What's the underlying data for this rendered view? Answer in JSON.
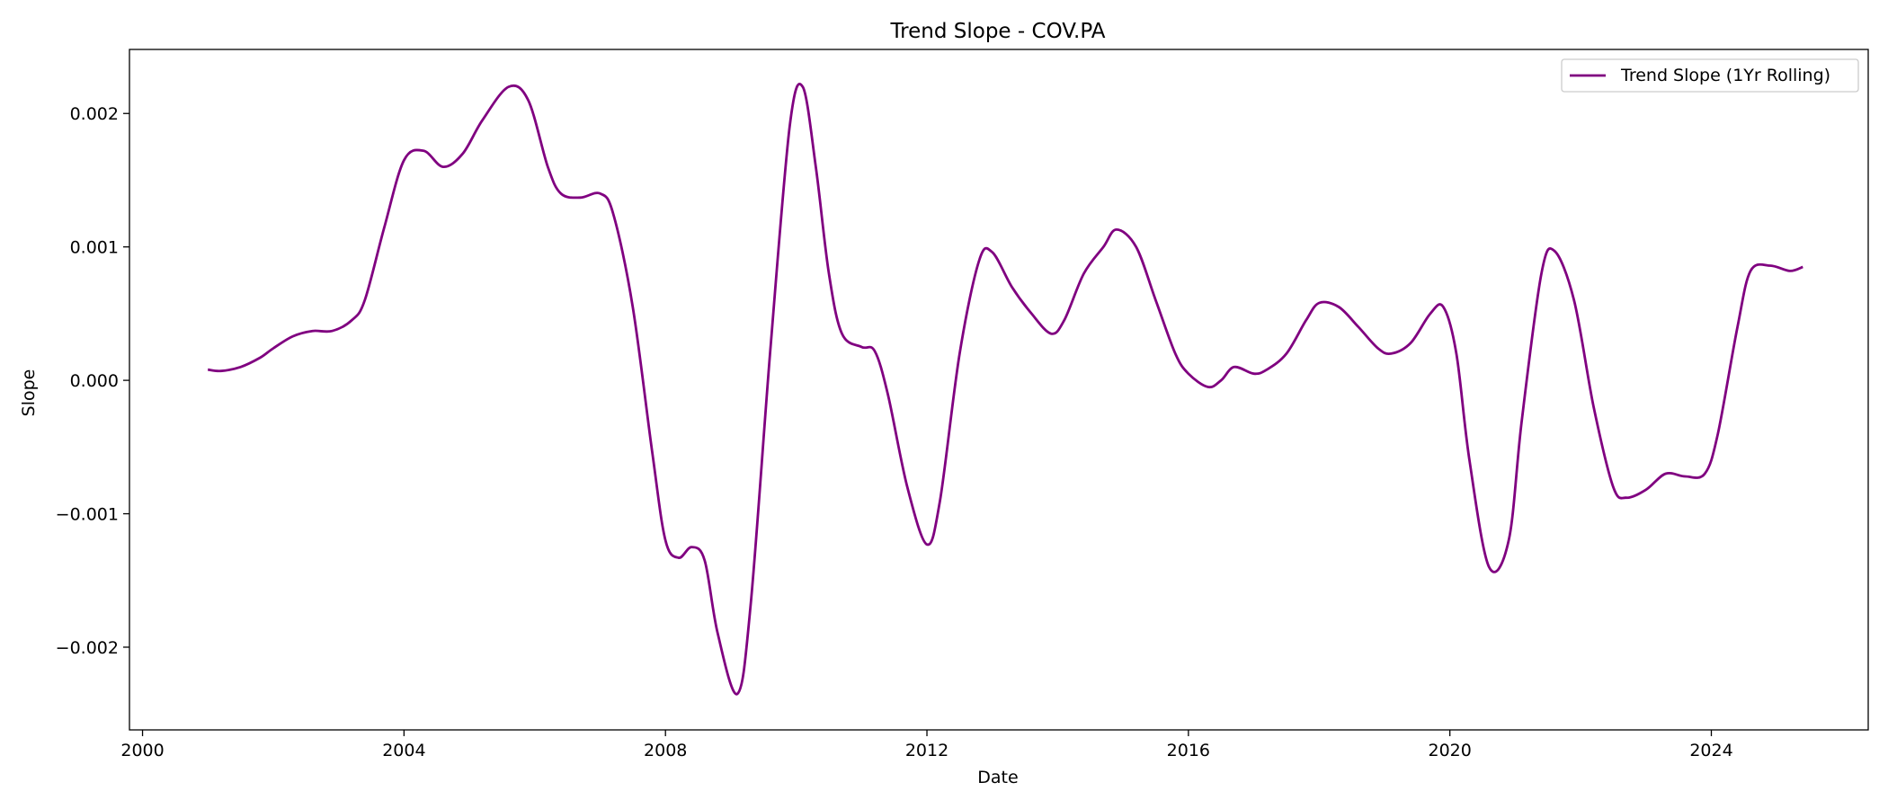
{
  "chart_data": {
    "type": "line",
    "title": "Trend Slope - COV.PA",
    "xlabel": "Date",
    "ylabel": "Slope",
    "xlim": [
      1999.8,
      2026.4
    ],
    "ylim": [
      -0.00262,
      0.00248
    ],
    "x_ticks": [
      2000,
      2004,
      2008,
      2012,
      2016,
      2020,
      2024
    ],
    "x_tick_labels": [
      "2000",
      "2004",
      "2008",
      "2012",
      "2016",
      "2020",
      "2024"
    ],
    "y_ticks": [
      -0.002,
      -0.001,
      0.0,
      0.001,
      0.002
    ],
    "y_tick_labels": [
      "−0.002",
      "−0.001",
      "0.000",
      "0.001",
      "0.002"
    ],
    "grid": false,
    "legend_position": "top-right",
    "series": [
      {
        "name": "Trend Slope (1Yr Rolling)",
        "color": "#800080",
        "x": [
          2001.0,
          2001.2,
          2001.5,
          2001.8,
          2002.0,
          2002.3,
          2002.6,
          2002.9,
          2003.2,
          2003.4,
          2003.7,
          2004.0,
          2004.3,
          2004.6,
          2004.9,
          2005.2,
          2005.6,
          2005.9,
          2006.2,
          2006.4,
          2006.7,
          2007.0,
          2007.2,
          2007.5,
          2007.8,
          2008.0,
          2008.2,
          2008.4,
          2008.6,
          2008.8,
          2009.1,
          2009.3,
          2009.6,
          2009.9,
          2010.1,
          2010.3,
          2010.5,
          2010.7,
          2011.0,
          2011.2,
          2011.4,
          2011.7,
          2012.0,
          2012.2,
          2012.5,
          2012.8,
          2013.0,
          2013.3,
          2013.6,
          2013.9,
          2014.1,
          2014.4,
          2014.7,
          2014.9,
          2015.2,
          2015.5,
          2015.8,
          2016.0,
          2016.3,
          2016.5,
          2016.7,
          2017.0,
          2017.2,
          2017.5,
          2017.8,
          2018.0,
          2018.3,
          2018.6,
          2018.9,
          2019.1,
          2019.4,
          2019.7,
          2019.9,
          2020.1,
          2020.3,
          2020.6,
          2020.9,
          2021.1,
          2021.4,
          2021.6,
          2021.9,
          2022.2,
          2022.5,
          2022.7,
          2023.0,
          2023.3,
          2023.6,
          2023.9,
          2024.1,
          2024.4,
          2024.6,
          2024.9,
          2025.2,
          2025.4
        ],
        "y": [
          8e-05,
          7e-05,
          0.0001,
          0.00017,
          0.00024,
          0.00033,
          0.00037,
          0.00037,
          0.00045,
          0.0006,
          0.00115,
          0.00165,
          0.00172,
          0.0016,
          0.0017,
          0.00195,
          0.0022,
          0.0021,
          0.0016,
          0.0014,
          0.00137,
          0.0014,
          0.00125,
          0.00055,
          -0.00055,
          -0.0012,
          -0.00133,
          -0.00125,
          -0.00135,
          -0.0019,
          -0.00235,
          -0.0017,
          0.0002,
          0.0019,
          0.0022,
          0.0016,
          0.0008,
          0.00035,
          0.00025,
          0.00022,
          -0.0001,
          -0.0008,
          -0.00123,
          -0.0009,
          0.0002,
          0.0009,
          0.00096,
          0.0007,
          0.0005,
          0.00035,
          0.00045,
          0.0008,
          0.001,
          0.00113,
          0.001,
          0.0006,
          0.0002,
          5e-05,
          -5e-05,
          0.0,
          0.0001,
          5e-05,
          8e-05,
          0.0002,
          0.00045,
          0.00058,
          0.00055,
          0.0004,
          0.00024,
          0.0002,
          0.00028,
          0.0005,
          0.00055,
          0.0002,
          -0.0006,
          -0.0014,
          -0.0012,
          -0.0003,
          0.0008,
          0.00097,
          0.0006,
          -0.0002,
          -0.0008,
          -0.00088,
          -0.00082,
          -0.0007,
          -0.00072,
          -0.0007,
          -0.0004,
          0.0004,
          0.00082,
          0.00086,
          0.00082,
          0.00085
        ]
      }
    ]
  }
}
